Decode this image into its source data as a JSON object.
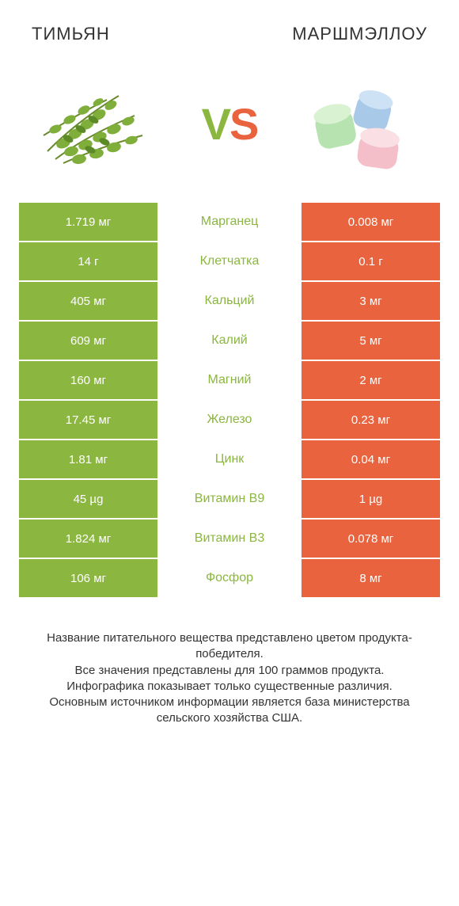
{
  "colors": {
    "green": "#8bb63f",
    "orange": "#e8633e",
    "mid_text_green": "#8bb63f",
    "background": "#ffffff",
    "text": "#333333"
  },
  "header": {
    "left_title": "ТИМЬЯН",
    "right_title": "МАРШМЭЛЛОУ"
  },
  "vs": {
    "v": "V",
    "s": "S"
  },
  "table": {
    "rows": [
      {
        "left": "1.719 мг",
        "label": "Марганец",
        "right": "0.008 мг",
        "winner": "left"
      },
      {
        "left": "14 г",
        "label": "Клетчатка",
        "right": "0.1 г",
        "winner": "left"
      },
      {
        "left": "405 мг",
        "label": "Кальций",
        "right": "3 мг",
        "winner": "left"
      },
      {
        "left": "609 мг",
        "label": "Калий",
        "right": "5 мг",
        "winner": "left"
      },
      {
        "left": "160 мг",
        "label": "Магний",
        "right": "2 мг",
        "winner": "left"
      },
      {
        "left": "17.45 мг",
        "label": "Железо",
        "right": "0.23 мг",
        "winner": "left"
      },
      {
        "left": "1.81 мг",
        "label": "Цинк",
        "right": "0.04 мг",
        "winner": "left"
      },
      {
        "left": "45 µg",
        "label": "Витамин B9",
        "right": "1 µg",
        "winner": "left"
      },
      {
        "left": "1.824 мг",
        "label": "Витамин B3",
        "right": "0.078 мг",
        "winner": "left"
      },
      {
        "left": "106 мг",
        "label": "Фосфор",
        "right": "8 мг",
        "winner": "left"
      }
    ]
  },
  "footer": {
    "line1": "Название питательного вещества представлено цветом продукта-победителя.",
    "line2": "Все значения представлены для 100 граммов продукта.",
    "line3": "Инфографика показывает только существенные различия.",
    "line4": "Основным источником информации является база министерства сельского хозяйства США."
  }
}
